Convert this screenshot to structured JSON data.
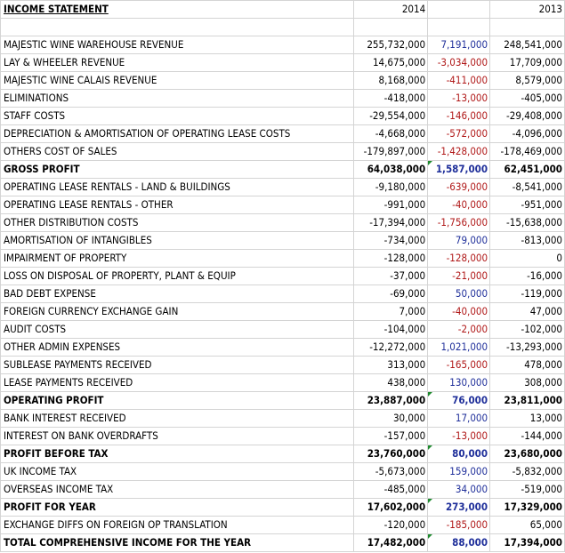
{
  "sheet": {
    "header": {
      "label": "INCOME STATEMENT",
      "col_2014": "2014",
      "col_diff": "",
      "col_2013": "2013"
    },
    "colors": {
      "positive_diff": "#1f2f9a",
      "negative_diff": "#b01818",
      "comment_marker": "#1e8a2e",
      "gridline": "#d4d4d4"
    },
    "rows": [
      {
        "label": "",
        "v2014": "",
        "diff": "",
        "v2013": ""
      },
      {
        "label": "MAJESTIC WINE WAREHOUSE REVENUE",
        "v2014": "255,732,000",
        "diff": "7,191,000",
        "v2013": "248,541,000"
      },
      {
        "label": "LAY & WHEELER REVENUE",
        "v2014": "14,675,000",
        "diff": "-3,034,000",
        "v2013": "17,709,000"
      },
      {
        "label": "MAJESTIC WINE CALAIS REVENUE",
        "v2014": "8,168,000",
        "diff": "-411,000",
        "v2013": "8,579,000"
      },
      {
        "label": "ELIMINATIONS",
        "v2014": "-418,000",
        "diff": "-13,000",
        "v2013": "-405,000"
      },
      {
        "label": "STAFF COSTS",
        "v2014": "-29,554,000",
        "diff": "-146,000",
        "v2013": "-29,408,000"
      },
      {
        "label": "DEPRECIATION & AMORTISATION OF OPERATING LEASE COSTS",
        "v2014": "-4,668,000",
        "diff": "-572,000",
        "v2013": "-4,096,000"
      },
      {
        "label": "OTHERS COST OF SALES",
        "v2014": "-179,897,000",
        "diff": "-1,428,000",
        "v2013": "-178,469,000"
      },
      {
        "label": "GROSS PROFIT",
        "v2014": "64,038,000",
        "diff": "1,587,000",
        "v2013": "62,451,000",
        "bold": true,
        "marker": true
      },
      {
        "label": "OPERATING LEASE RENTALS - LAND & BUILDINGS",
        "v2014": "-9,180,000",
        "diff": "-639,000",
        "v2013": "-8,541,000"
      },
      {
        "label": "OPERATING LEASE RENTALS - OTHER",
        "v2014": "-991,000",
        "diff": "-40,000",
        "v2013": "-951,000"
      },
      {
        "label": "OTHER DISTRIBUTION COSTS",
        "v2014": "-17,394,000",
        "diff": "-1,756,000",
        "v2013": "-15,638,000"
      },
      {
        "label": "AMORTISATION OF INTANGIBLES",
        "v2014": "-734,000",
        "diff": "79,000",
        "v2013": "-813,000"
      },
      {
        "label": "IMPAIRMENT OF PROPERTY",
        "v2014": "-128,000",
        "diff": "-128,000",
        "v2013": "0"
      },
      {
        "label": "LOSS ON DISPOSAL OF PROPERTY, PLANT & EQUIP",
        "v2014": "-37,000",
        "diff": "-21,000",
        "v2013": "-16,000"
      },
      {
        "label": "BAD DEBT EXPENSE",
        "v2014": "-69,000",
        "diff": "50,000",
        "v2013": "-119,000"
      },
      {
        "label": "FOREIGN CURRENCY EXCHANGE GAIN",
        "v2014": "7,000",
        "diff": "-40,000",
        "v2013": "47,000"
      },
      {
        "label": "AUDIT COSTS",
        "v2014": "-104,000",
        "diff": "-2,000",
        "v2013": "-102,000"
      },
      {
        "label": "OTHER ADMIN EXPENSES",
        "v2014": "-12,272,000",
        "diff": "1,021,000",
        "v2013": "-13,293,000"
      },
      {
        "label": "SUBLEASE PAYMENTS RECEIVED",
        "v2014": "313,000",
        "diff": "-165,000",
        "v2013": "478,000"
      },
      {
        "label": "LEASE PAYMENTS RECEIVED",
        "v2014": "438,000",
        "diff": "130,000",
        "v2013": "308,000"
      },
      {
        "label": "OPERATING PROFIT",
        "v2014": "23,887,000",
        "diff": "76,000",
        "v2013": "23,811,000",
        "bold": true,
        "marker": true
      },
      {
        "label": "BANK INTEREST RECEIVED",
        "v2014": "30,000",
        "diff": "17,000",
        "v2013": "13,000"
      },
      {
        "label": "INTEREST ON BANK OVERDRAFTS",
        "v2014": "-157,000",
        "diff": "-13,000",
        "v2013": "-144,000"
      },
      {
        "label": "PROFIT BEFORE TAX",
        "v2014": "23,760,000",
        "diff": "80,000",
        "v2013": "23,680,000",
        "bold": true,
        "marker": true
      },
      {
        "label": "UK INCOME TAX",
        "v2014": "-5,673,000",
        "diff": "159,000",
        "v2013": "-5,832,000"
      },
      {
        "label": "OVERSEAS INCOME TAX",
        "v2014": "-485,000",
        "diff": "34,000",
        "v2013": "-519,000"
      },
      {
        "label": "PROFIT FOR YEAR",
        "v2014": "17,602,000",
        "diff": "273,000",
        "v2013": "17,329,000",
        "bold": true,
        "marker": true
      },
      {
        "label": "EXCHANGE DIFFS ON FOREIGN OP TRANSLATION",
        "v2014": "-120,000",
        "diff": "-185,000",
        "v2013": "65,000"
      },
      {
        "label": "TOTAL COMPREHENSIVE INCOME FOR THE YEAR",
        "v2014": "17,482,000",
        "diff": "88,000",
        "v2013": "17,394,000",
        "bold": true,
        "marker": true
      }
    ]
  }
}
